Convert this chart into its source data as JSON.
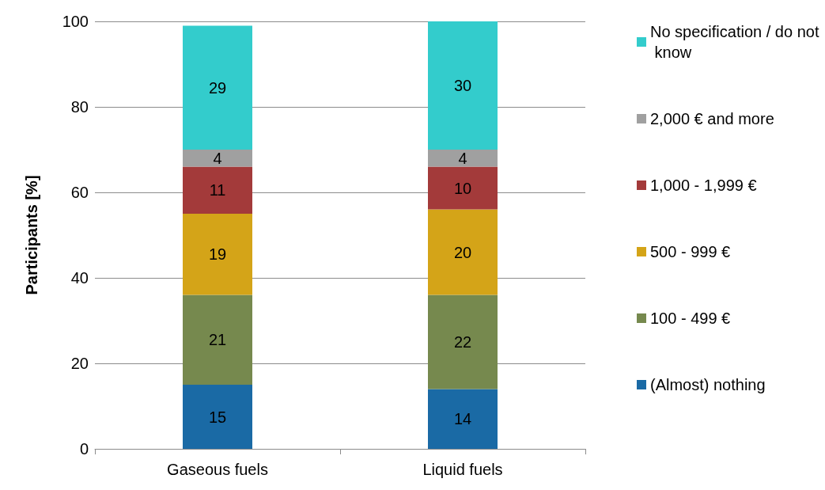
{
  "chart_data": {
    "type": "bar",
    "stacked": true,
    "ylabel": "Participants [%]",
    "categories": [
      "Gaseous fuels",
      "Liquid fuels"
    ],
    "series": [
      {
        "name": "(Almost) nothing",
        "color": "#1a6aa5",
        "values": [
          15,
          14
        ]
      },
      {
        "name": "100 - 499 €",
        "color": "#76894e",
        "values": [
          21,
          22
        ]
      },
      {
        "name": "500 - 999 €",
        "color": "#d4a418",
        "values": [
          19,
          20
        ]
      },
      {
        "name": "1,000 - 1,999 €",
        "color": "#a33a3a",
        "values": [
          11,
          10
        ]
      },
      {
        "name": "2,000 € and more",
        "color": "#a0a0a0",
        "values": [
          4,
          4
        ]
      },
      {
        "name": "No specification / do not know",
        "color": "#33cccc",
        "values": [
          29,
          30
        ]
      }
    ],
    "ylim": [
      0,
      100
    ],
    "yticks": [
      0,
      20,
      40,
      60,
      80,
      100
    ],
    "grid": "y",
    "legend": "right",
    "data_labels": true
  }
}
